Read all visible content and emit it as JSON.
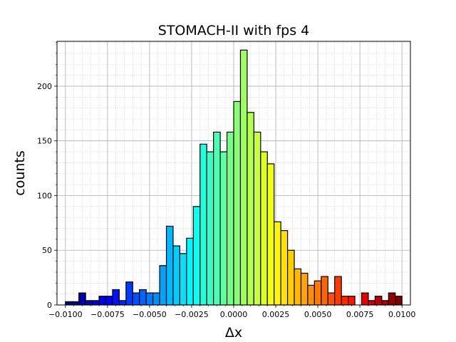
{
  "chart_data": {
    "type": "bar",
    "title": "STOMACH-II with fps 4",
    "xlabel": "Δx",
    "ylabel": "counts",
    "xlim": [
      -0.0105,
      0.0105
    ],
    "ylim": [
      0,
      241
    ],
    "grid": true,
    "minor_grid": true,
    "colormap": "jet",
    "edge_color": "#000000",
    "bins": {
      "start": -0.01,
      "width": 0.0004,
      "count": 50
    },
    "values": [
      3,
      3,
      11,
      4,
      4,
      8,
      8,
      14,
      4,
      21,
      11,
      14,
      11,
      11,
      36,
      72,
      54,
      47,
      61,
      90,
      147,
      140,
      158,
      140,
      158,
      186,
      233,
      176,
      158,
      140,
      129,
      76,
      68,
      50,
      33,
      29,
      18,
      22,
      26,
      11,
      26,
      8,
      8,
      0,
      11,
      4,
      8,
      4,
      11,
      8
    ],
    "x_ticks": [
      -0.01,
      -0.0075,
      -0.005,
      -0.0025,
      0,
      0.0025,
      0.005,
      0.0075,
      0.01
    ],
    "x_tick_labels": [
      "−0.0100",
      "−0.0075",
      "−0.0050",
      "−0.0025",
      "0.0000",
      "0.0025",
      "0.0050",
      "0.0075",
      "0.0100"
    ],
    "y_ticks": [
      0,
      50,
      100,
      150,
      200
    ],
    "y_tick_labels": [
      "0",
      "50",
      "100",
      "150",
      "200"
    ]
  }
}
